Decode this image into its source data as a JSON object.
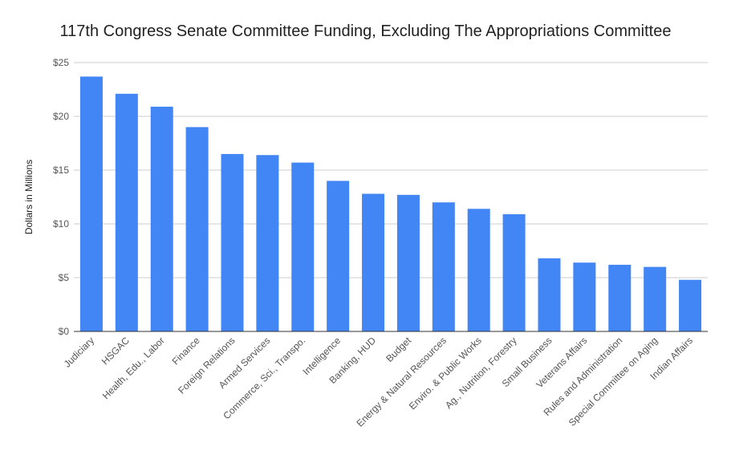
{
  "chart_data": {
    "type": "bar",
    "title": "117th Congress Senate Committee Funding, Excluding The Appropriations Committee",
    "xlabel": "",
    "ylabel": "Dollars in Millions",
    "ylim": [
      0,
      25
    ],
    "yticks": [
      "$0",
      "$5",
      "$10",
      "$15",
      "$20",
      "$25"
    ],
    "grid": true,
    "bar_color": "#4285f4",
    "categories": [
      "Judiciary",
      "HSGAC",
      "Health, Edu., Labor",
      "Finance",
      "Foreign Relations",
      "Armed Services",
      "Commerce, Sci., Transpo.",
      "Intelligence",
      "Banking, HUD",
      "Budget",
      "Energy & Natural Resources",
      "Enviro. & Public Works",
      "Ag., Nutrition, Forestry",
      "Small Business",
      "Veterans Affairs",
      "Rules and Administration",
      "Special Committee on Aging",
      "Indian Affairs"
    ],
    "values": [
      23.7,
      22.1,
      20.9,
      19.0,
      16.5,
      16.4,
      15.7,
      14.0,
      12.8,
      12.7,
      12.0,
      11.4,
      10.9,
      6.8,
      6.4,
      6.2,
      6.0,
      4.8
    ]
  }
}
